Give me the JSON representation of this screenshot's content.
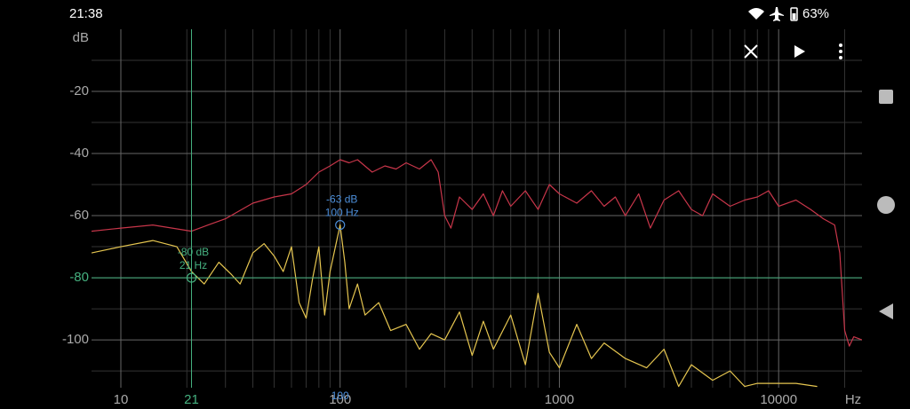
{
  "status_bar": {
    "time": "21:38",
    "battery": "63%"
  },
  "chart_data": {
    "type": "line",
    "x_scale": "log",
    "y_unit": "dB",
    "x_unit": "Hz",
    "xlim": [
      7.35,
      24000
    ],
    "ylim": [
      -115.4,
      0
    ],
    "xticks": [
      10,
      100,
      1000,
      10000
    ],
    "yticks": [
      -20,
      -40,
      -60,
      -80,
      -100
    ],
    "x_minor_ticks": [
      20,
      30,
      40,
      50,
      60,
      70,
      80,
      90,
      200,
      300,
      400,
      500,
      600,
      700,
      800,
      900,
      2000,
      3000,
      4000,
      5000,
      6000,
      7000,
      8000,
      9000,
      20000
    ],
    "y_minor_ticks": [
      -10,
      -30,
      -50,
      -70,
      -90,
      -110
    ],
    "grid": true,
    "series": [
      {
        "color": "#c8364a",
        "x": [
          7.35,
          10,
          14,
          21,
          25,
          30,
          40,
          50,
          60,
          70,
          80,
          90,
          100,
          110,
          120,
          140,
          160,
          180,
          200,
          230,
          260,
          280,
          300,
          320,
          350,
          400,
          450,
          500,
          550,
          600,
          700,
          800,
          900,
          1000,
          1200,
          1400,
          1600,
          1800,
          2000,
          2300,
          2600,
          3000,
          3500,
          4000,
          4500,
          5000,
          6000,
          7000,
          8000,
          9000,
          10000,
          12000,
          14000,
          16000,
          18000,
          19000,
          20000,
          21000,
          22000,
          24000
        ],
        "values": [
          -65,
          -64,
          -63,
          -65,
          -63,
          -61,
          -56,
          -54,
          -53,
          -50,
          -46,
          -44,
          -42,
          -43,
          -42,
          -46,
          -44,
          -45,
          -43,
          -45,
          -42,
          -46,
          -60,
          -64,
          -54,
          -58,
          -53,
          -60,
          -52,
          -57,
          -52,
          -58,
          -50,
          -53,
          -56,
          -52,
          -57,
          -54,
          -60,
          -53,
          -64,
          -55,
          -52,
          -58,
          -60,
          -53,
          -57,
          -55,
          -54,
          -52,
          -57,
          -55,
          -58,
          -61,
          -63,
          -72,
          -97,
          -102,
          -99,
          -100
        ]
      },
      {
        "color": "#e6c650",
        "x": [
          7.35,
          10,
          14,
          18,
          21,
          24,
          28,
          32,
          35,
          40,
          45,
          50,
          55,
          60,
          65,
          70,
          75,
          80,
          85,
          90,
          100,
          105,
          110,
          120,
          130,
          150,
          170,
          200,
          230,
          260,
          300,
          350,
          400,
          450,
          500,
          600,
          700,
          800,
          900,
          1000,
          1200,
          1400,
          1600,
          2000,
          2500,
          3000,
          3500,
          4000,
          5000,
          6000,
          7000,
          8000,
          12000,
          15000
        ],
        "values": [
          -72,
          -70,
          -68,
          -70,
          -78,
          -82,
          -75,
          -79,
          -82,
          -72,
          -69,
          -73,
          -78,
          -70,
          -88,
          -93,
          -80,
          -70,
          -92,
          -78,
          -63,
          -75,
          -90,
          -82,
          -92,
          -88,
          -97,
          -95,
          -103,
          -98,
          -100,
          -91,
          -105,
          -94,
          -103,
          -92,
          -108,
          -85,
          -104,
          -109,
          -95,
          -106,
          -101,
          -106,
          -109,
          -103,
          -115,
          -108,
          -113,
          -110,
          -115,
          -114,
          -114,
          -115
        ]
      }
    ],
    "cursors": [
      {
        "x": 21,
        "y": -80,
        "color": "#45b07f",
        "annotation": [
          "-80 dB",
          "21 Hz"
        ],
        "show_lines": true
      },
      {
        "x": 100,
        "y": -63,
        "color": "#4d8fda",
        "annotation": [
          "-63 dB",
          "100 Hz"
        ],
        "show_lines": false
      }
    ]
  }
}
